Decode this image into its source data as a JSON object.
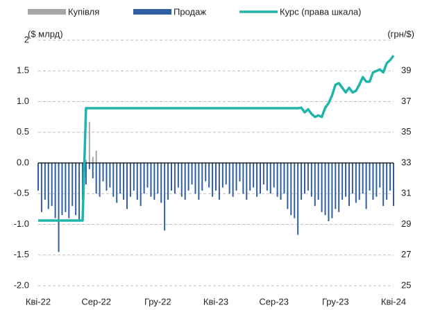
{
  "chart_data": {
    "type": "bar",
    "ylabel": "($ млрд)",
    "y2label": "(грн/$)",
    "categories": [
      "Кві-22",
      null,
      null,
      null,
      null,
      null,
      null,
      null,
      null,
      null,
      null,
      null,
      null,
      null,
      null,
      null,
      null,
      "Сер-22",
      null,
      null,
      null,
      null,
      null,
      null,
      null,
      null,
      null,
      null,
      null,
      null,
      null,
      null,
      null,
      null,
      null,
      "Гру-22",
      null,
      null,
      null,
      null,
      null,
      null,
      null,
      null,
      null,
      null,
      null,
      null,
      null,
      null,
      null,
      null,
      "Кві-23",
      null,
      null,
      null,
      null,
      null,
      null,
      null,
      null,
      null,
      null,
      null,
      null,
      null,
      null,
      null,
      null,
      "Сер-23",
      null,
      null,
      null,
      null,
      null,
      null,
      null,
      null,
      null,
      null,
      null,
      null,
      null,
      null,
      null,
      null,
      null,
      "Гру-23",
      null,
      null,
      null,
      null,
      null,
      null,
      null,
      null,
      null,
      null,
      null,
      null,
      null,
      null,
      null,
      null,
      "Кві-24"
    ],
    "series": [
      {
        "name": "Купівля",
        "color": "#a6a6a6",
        "values": [
          null,
          null,
          null,
          null,
          null,
          null,
          null,
          null,
          null,
          null,
          null,
          null,
          null,
          null,
          0.05,
          0.67,
          0.1,
          0.2,
          null,
          null,
          null,
          null,
          null,
          null,
          null,
          null,
          null,
          null,
          null,
          null,
          null,
          null,
          null,
          null,
          null,
          null,
          null,
          null,
          null,
          null,
          null,
          null,
          null,
          null,
          null,
          null,
          null,
          null,
          null,
          null,
          null,
          null,
          null,
          null,
          null,
          null,
          null,
          null,
          null,
          null,
          null,
          null,
          null,
          null,
          null,
          null,
          null,
          null,
          null,
          null,
          null,
          null,
          null,
          null,
          null,
          null,
          null,
          null,
          null,
          null,
          null,
          null,
          null,
          null,
          null,
          null,
          null,
          null,
          null,
          null,
          null,
          null,
          null,
          null,
          null,
          null,
          null,
          null,
          null,
          null,
          null,
          null,
          null,
          null,
          null
        ]
      },
      {
        "name": "Продаж",
        "color": "#2e5fa3",
        "values": [
          -0.45,
          -0.8,
          -0.6,
          -0.75,
          -0.7,
          -0.9,
          -1.45,
          -0.85,
          -0.8,
          -0.9,
          -0.7,
          -0.85,
          -0.95,
          -0.6,
          -0.35,
          -0.1,
          -0.25,
          -0.5,
          -0.55,
          -0.3,
          -0.45,
          -0.4,
          -0.55,
          -0.65,
          -0.5,
          -0.6,
          -0.75,
          -0.55,
          -0.45,
          -0.6,
          -0.7,
          -0.5,
          -0.4,
          -0.55,
          -0.6,
          -0.5,
          -0.65,
          -1.1,
          -0.6,
          -0.45,
          -0.5,
          -0.4,
          -0.55,
          -0.6,
          -0.45,
          -0.35,
          -0.5,
          -0.6,
          -0.45,
          -0.3,
          -0.4,
          -0.55,
          -0.45,
          -0.6,
          -0.4,
          -0.35,
          -0.5,
          -0.55,
          -0.45,
          -0.3,
          -0.5,
          -0.6,
          -0.45,
          -0.4,
          -0.55,
          -0.5,
          -0.35,
          -0.45,
          -0.5,
          -0.4,
          -0.55,
          -0.6,
          -0.5,
          -0.75,
          -0.85,
          -0.9,
          -1.17,
          -0.6,
          -0.5,
          -0.45,
          -0.55,
          -0.7,
          -0.6,
          -0.8,
          -0.85,
          -0.95,
          -0.9,
          -0.75,
          -0.8,
          -0.6,
          -0.55,
          -0.7,
          -0.5,
          -0.65,
          -0.6,
          -0.5,
          -0.75,
          -0.45,
          -0.6,
          -0.55,
          -0.4,
          -0.7,
          -0.6,
          -0.45,
          -0.7
        ]
      },
      {
        "name": "Курс (права шкала)",
        "color": "#1fb5a9",
        "axis": "y2",
        "values": [
          29.25,
          29.25,
          29.25,
          29.25,
          29.25,
          29.25,
          29.25,
          29.25,
          29.25,
          29.25,
          29.25,
          29.25,
          29.25,
          29.25,
          36.57,
          36.57,
          36.57,
          36.57,
          36.57,
          36.57,
          36.57,
          36.57,
          36.57,
          36.57,
          36.57,
          36.57,
          36.57,
          36.57,
          36.57,
          36.57,
          36.57,
          36.57,
          36.57,
          36.57,
          36.57,
          36.57,
          36.57,
          36.57,
          36.57,
          36.57,
          36.57,
          36.57,
          36.57,
          36.57,
          36.57,
          36.57,
          36.57,
          36.57,
          36.57,
          36.57,
          36.57,
          36.57,
          36.57,
          36.57,
          36.57,
          36.57,
          36.57,
          36.57,
          36.57,
          36.57,
          36.57,
          36.57,
          36.57,
          36.57,
          36.57,
          36.57,
          36.57,
          36.57,
          36.57,
          36.57,
          36.57,
          36.57,
          36.57,
          36.57,
          36.57,
          36.57,
          36.57,
          36.6,
          36.3,
          36.5,
          36.2,
          36.0,
          36.1,
          36.0,
          36.6,
          36.9,
          37.4,
          38.1,
          38.2,
          37.9,
          37.6,
          37.9,
          37.6,
          37.7,
          38.1,
          38.6,
          38.3,
          38.3,
          38.9,
          39.0,
          39.1,
          38.9,
          39.5,
          39.7,
          40.0
        ]
      }
    ],
    "ylim": [
      -2,
      2
    ],
    "yticks": [
      {
        "value": -2,
        "label": "-2.0"
      },
      {
        "value": -1.5,
        "label": "-1.5"
      },
      {
        "value": -1,
        "label": "-1.0"
      },
      {
        "value": -0.5,
        "label": "-0.5"
      },
      {
        "value": 0,
        "label": "0.0"
      },
      {
        "value": 0.5,
        "label": "0.5"
      },
      {
        "value": 1,
        "label": "1.0"
      },
      1.5,
      2
    ],
    "y2lim": [
      25,
      41
    ],
    "y2ticks": [
      25,
      27,
      29,
      31,
      33,
      35,
      37,
      39
    ],
    "grid": true
  }
}
